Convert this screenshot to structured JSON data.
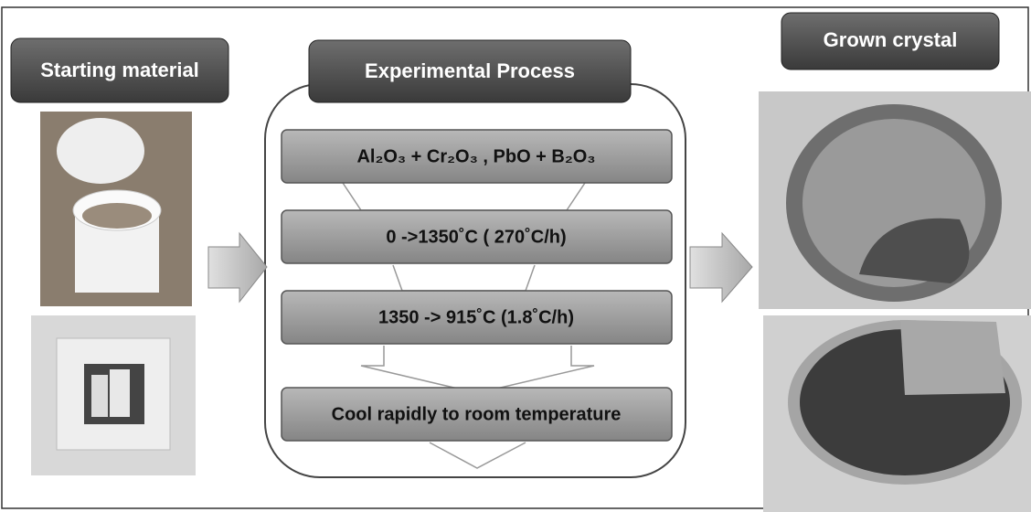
{
  "header": {
    "starting_material": "Starting material",
    "experimental_process": "Experimental Process",
    "grown_crystal": "Grown crystal"
  },
  "steps": [
    {
      "label": "Al₂O₃ + Cr₂O₃ ,   PbO + B₂O₃"
    },
    {
      "label": "0 ->1350˚C    ( 270˚C/h)"
    },
    {
      "label": "1350 -> 915˚C (1.8˚C/h)"
    },
    {
      "label": "Cool rapidly to room temperature"
    }
  ]
}
